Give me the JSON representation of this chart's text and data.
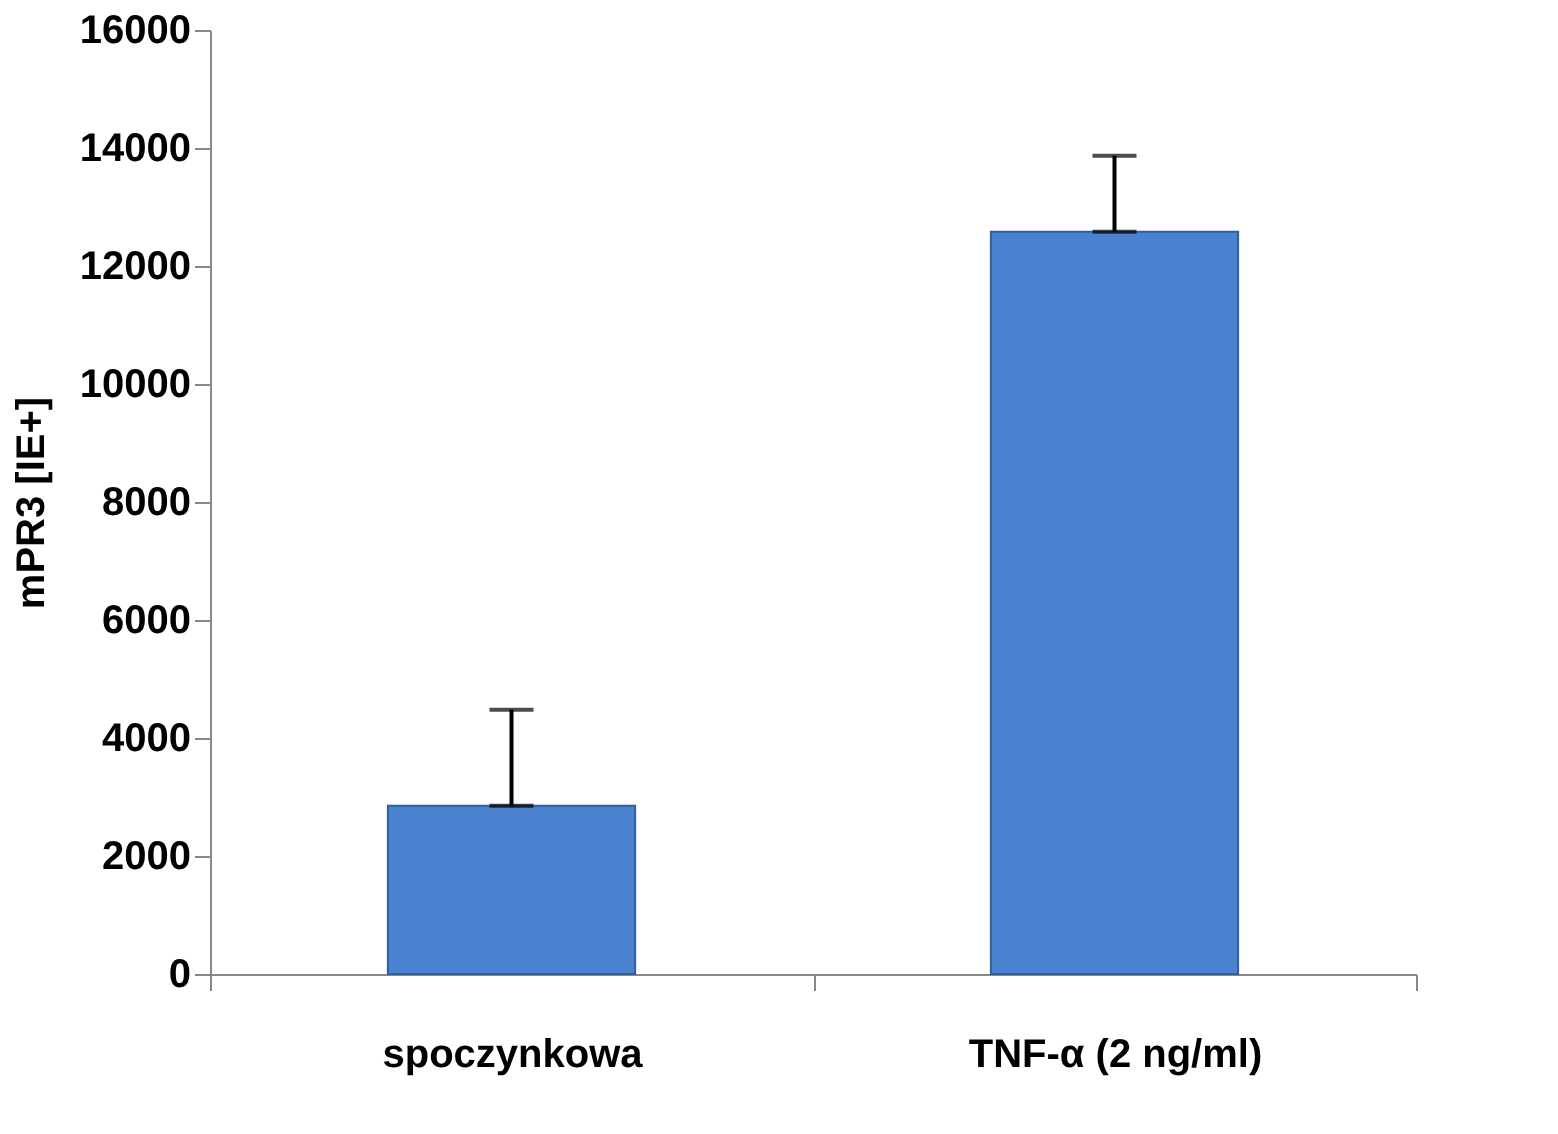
{
  "chart_data": {
    "type": "bar",
    "ylabel": "mPR3 [IE+]",
    "categories": [
      "spoczynkowa",
      "TNF-α (2 ng/ml)"
    ],
    "values": [
      2850,
      12580
    ],
    "errors": [
      [
        2850,
        4480
      ],
      [
        12580,
        13870
      ]
    ],
    "color": "#4a82d0",
    "ylim": [
      0,
      16000
    ],
    "yticks": [
      0,
      2000,
      4000,
      6000,
      8000,
      10000,
      12000,
      14000,
      16000
    ],
    "grid": false
  }
}
